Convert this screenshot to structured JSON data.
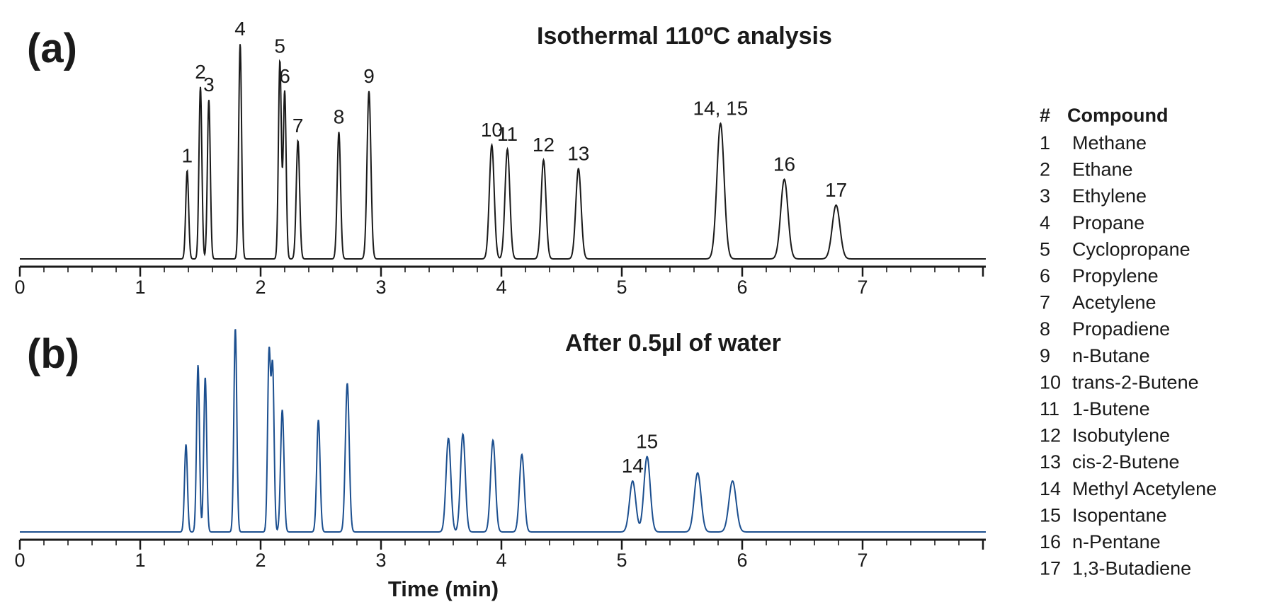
{
  "chart_data": [
    {
      "type": "line",
      "panel_label": "(a)",
      "title": "Isothermal 110ºC analysis",
      "xlabel": "",
      "xlim": [
        0,
        8
      ],
      "x_ticks": [
        0,
        1,
        2,
        3,
        4,
        5,
        6,
        7
      ],
      "grid": false,
      "line_color": "#1a1a1a",
      "peaks": [
        {
          "label": "1",
          "time": 1.39,
          "height": 0.41,
          "width": 0.012
        },
        {
          "label": "2",
          "time": 1.5,
          "height": 0.8,
          "width": 0.012
        },
        {
          "label": "3",
          "time": 1.57,
          "height": 0.74,
          "width": 0.012
        },
        {
          "label": "4",
          "time": 1.83,
          "height": 1.0,
          "width": 0.012
        },
        {
          "label": "5",
          "time": 2.16,
          "height": 0.92,
          "width": 0.012
        },
        {
          "label": "6",
          "time": 2.2,
          "height": 0.78,
          "width": 0.012
        },
        {
          "label": "7",
          "time": 2.31,
          "height": 0.55,
          "width": 0.014
        },
        {
          "label": "8",
          "time": 2.65,
          "height": 0.59,
          "width": 0.014
        },
        {
          "label": "9",
          "time": 2.9,
          "height": 0.78,
          "width": 0.016
        },
        {
          "label": "10",
          "time": 3.92,
          "height": 0.53,
          "width": 0.02
        },
        {
          "label": "11",
          "time": 4.05,
          "height": 0.51,
          "width": 0.02
        },
        {
          "label": "12",
          "time": 4.35,
          "height": 0.46,
          "width": 0.02
        },
        {
          "label": "13",
          "time": 4.64,
          "height": 0.42,
          "width": 0.022
        },
        {
          "label": "14, 15",
          "time": 5.82,
          "height": 0.63,
          "width": 0.03
        },
        {
          "label": "16",
          "time": 6.35,
          "height": 0.37,
          "width": 0.03
        },
        {
          "label": "17",
          "time": 6.78,
          "height": 0.25,
          "width": 0.032
        }
      ]
    },
    {
      "type": "line",
      "panel_label": "(b)",
      "title": "After 0.5µl of water",
      "xlabel": "Time (min)",
      "xlim": [
        0,
        8
      ],
      "x_ticks": [
        0,
        1,
        2,
        3,
        4,
        5,
        6,
        7
      ],
      "grid": false,
      "line_color": "#1c4f8f",
      "peaks": [
        {
          "label": "",
          "time": 1.38,
          "height": 0.43,
          "width": 0.012
        },
        {
          "label": "",
          "time": 1.48,
          "height": 0.82,
          "width": 0.012
        },
        {
          "label": "",
          "time": 1.54,
          "height": 0.76,
          "width": 0.012
        },
        {
          "label": "",
          "time": 1.79,
          "height": 1.0,
          "width": 0.012
        },
        {
          "label": "",
          "time": 2.07,
          "height": 0.87,
          "width": 0.012
        },
        {
          "label": "",
          "time": 2.1,
          "height": 0.8,
          "width": 0.012
        },
        {
          "label": "",
          "time": 2.18,
          "height": 0.6,
          "width": 0.014
        },
        {
          "label": "",
          "time": 2.48,
          "height": 0.55,
          "width": 0.014
        },
        {
          "label": "",
          "time": 2.72,
          "height": 0.73,
          "width": 0.016
        },
        {
          "label": "",
          "time": 3.56,
          "height": 0.46,
          "width": 0.02
        },
        {
          "label": "",
          "time": 3.68,
          "height": 0.48,
          "width": 0.02
        },
        {
          "label": "",
          "time": 3.93,
          "height": 0.45,
          "width": 0.02
        },
        {
          "label": "",
          "time": 4.17,
          "height": 0.38,
          "width": 0.02
        },
        {
          "label": "14",
          "time": 5.09,
          "height": 0.25,
          "width": 0.026
        },
        {
          "label": "15",
          "time": 5.21,
          "height": 0.37,
          "width": 0.026
        },
        {
          "label": "",
          "time": 5.63,
          "height": 0.29,
          "width": 0.028
        },
        {
          "label": "",
          "time": 5.92,
          "height": 0.25,
          "width": 0.03
        }
      ]
    }
  ],
  "legend": {
    "header_number": "#",
    "header_compound": "Compound",
    "rows": [
      {
        "num": "1",
        "name": "Methane"
      },
      {
        "num": "2",
        "name": "Ethane"
      },
      {
        "num": "3",
        "name": "Ethylene"
      },
      {
        "num": "4",
        "name": "Propane"
      },
      {
        "num": "5",
        "name": "Cyclopropane"
      },
      {
        "num": "6",
        "name": "Propylene"
      },
      {
        "num": "7",
        "name": "Acetylene"
      },
      {
        "num": "8",
        "name": "Propadiene"
      },
      {
        "num": "9",
        "name": "n-Butane"
      },
      {
        "num": "10",
        "name": "trans-2-Butene"
      },
      {
        "num": "11",
        "name": "1-Butene"
      },
      {
        "num": "12",
        "name": "Isobutylene"
      },
      {
        "num": "13",
        "name": "cis-2-Butene"
      },
      {
        "num": "14",
        "name": "Methyl Acetylene"
      },
      {
        "num": "15",
        "name": "Isopentane"
      },
      {
        "num": "16",
        "name": "n-Pentane"
      },
      {
        "num": "17",
        "name": "1,3-Butadiene"
      }
    ]
  }
}
